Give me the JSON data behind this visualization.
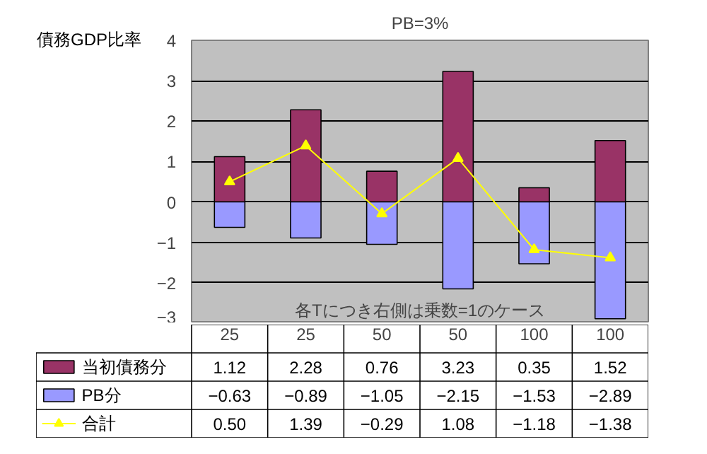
{
  "chart_data": {
    "type": "bar",
    "title": "PB=3%",
    "ylabel": "債務GDP比率",
    "categories": [
      "25",
      "25",
      "50",
      "50",
      "100",
      "100"
    ],
    "stacked": true,
    "series": [
      {
        "name": "当初債務分",
        "color": "#993366",
        "values": [
          1.12,
          2.28,
          0.76,
          3.23,
          0.35,
          1.52
        ]
      },
      {
        "name": "PB分",
        "color": "#9999ff",
        "values": [
          -0.63,
          -0.89,
          -1.05,
          -2.15,
          -1.53,
          -2.89
        ]
      },
      {
        "name": "合計",
        "type": "line",
        "color": "#ffff00",
        "marker": "triangle",
        "values": [
          0.5,
          1.39,
          -0.29,
          1.08,
          -1.18,
          -1.38
        ],
        "value_labels": [
          "0.50",
          "1.39",
          "−0.29",
          "1.08",
          "−1.18",
          "−1.38"
        ]
      }
    ],
    "ylim": [
      -3,
      4
    ],
    "yticks": [
      -3,
      -2,
      -1,
      0,
      1,
      2,
      3,
      4
    ],
    "grid": "y",
    "legend": "bottom",
    "data_labels": true,
    "annotations": [
      "各Tにつき右側は乗数=1のケース"
    ]
  }
}
